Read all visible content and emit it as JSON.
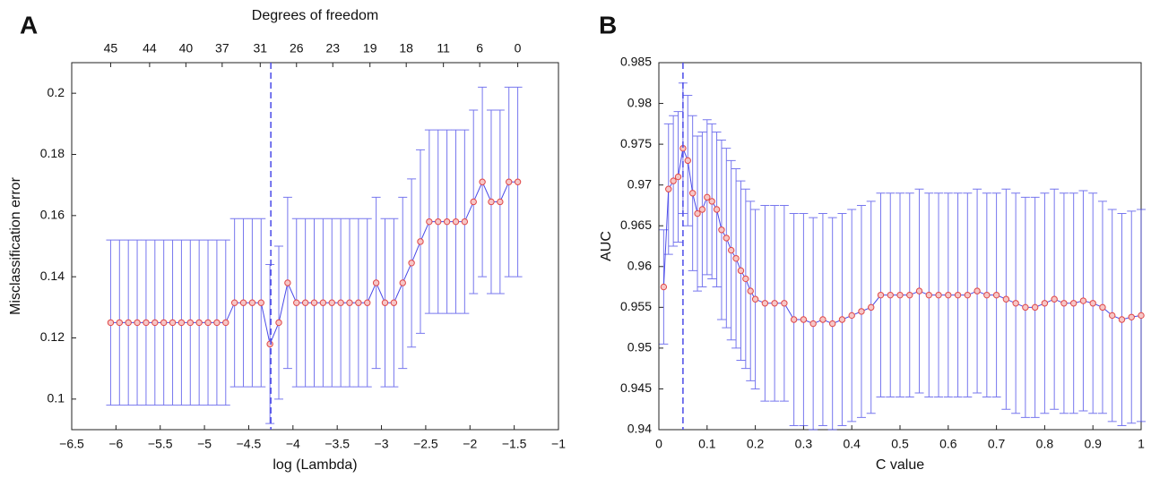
{
  "chart_data": [
    {
      "type": "errorbar",
      "panel_label": "A",
      "x2label": "Degrees of freedom",
      "xlabel": "log (Lambda)",
      "ylabel": "Misclassification error",
      "xlim": [
        -6.5,
        -1
      ],
      "ylim": [
        0.09,
        0.21
      ],
      "xticks": [
        {
          "value": -6.5,
          "label": "−6.5"
        },
        {
          "value": -6,
          "label": "−6"
        },
        {
          "value": -5.5,
          "label": "−5.5"
        },
        {
          "value": -5,
          "label": "−5"
        },
        {
          "value": -4.5,
          "label": "−4.5"
        },
        {
          "value": -4,
          "label": "−4"
        },
        {
          "value": -3.5,
          "label": "−3.5"
        },
        {
          "value": -3,
          "label": "−3"
        },
        {
          "value": -2.5,
          "label": "−2.5"
        },
        {
          "value": -2,
          "label": "−2"
        },
        {
          "value": -1.5,
          "label": "−1.5"
        },
        {
          "value": -1,
          "label": "−1"
        }
      ],
      "yticks": [
        0.1,
        0.12,
        0.14,
        0.16,
        0.18,
        0.2
      ],
      "x2ticks": [
        {
          "value": -6.06,
          "label": "45"
        },
        {
          "value": -5.62,
          "label": "44"
        },
        {
          "value": -5.21,
          "label": "40"
        },
        {
          "value": -4.8,
          "label": "37"
        },
        {
          "value": -4.37,
          "label": "31"
        },
        {
          "value": -3.96,
          "label": "26"
        },
        {
          "value": -3.55,
          "label": "23"
        },
        {
          "value": -3.13,
          "label": "19"
        },
        {
          "value": -2.72,
          "label": "18"
        },
        {
          "value": -2.3,
          "label": "11"
        },
        {
          "value": -1.89,
          "label": "6"
        },
        {
          "value": -1.46,
          "label": "0"
        }
      ],
      "vline": -4.25,
      "series": [
        {
          "color": "#4a4ae8",
          "marker_color": "#e04848",
          "x": [
            -6.06,
            -5.96,
            -5.86,
            -5.76,
            -5.66,
            -5.56,
            -5.46,
            -5.36,
            -5.26,
            -5.16,
            -5.06,
            -4.96,
            -4.86,
            -4.76,
            -4.66,
            -4.56,
            -4.46,
            -4.36,
            -4.26,
            -4.16,
            -4.06,
            -3.96,
            -3.86,
            -3.76,
            -3.66,
            -3.56,
            -3.46,
            -3.36,
            -3.26,
            -3.16,
            -3.06,
            -2.96,
            -2.86,
            -2.76,
            -2.66,
            -2.56,
            -2.46,
            -2.36,
            -2.26,
            -2.16,
            -2.06,
            -1.96,
            -1.86,
            -1.76,
            -1.66,
            -1.56,
            -1.46
          ],
          "values": [
            0.125,
            0.125,
            0.125,
            0.125,
            0.125,
            0.125,
            0.125,
            0.125,
            0.125,
            0.125,
            0.125,
            0.125,
            0.125,
            0.125,
            0.1315,
            0.1315,
            0.1315,
            0.1315,
            0.118,
            0.125,
            0.138,
            0.1315,
            0.1315,
            0.1315,
            0.1315,
            0.1315,
            0.1315,
            0.1315,
            0.1315,
            0.1315,
            0.138,
            0.1315,
            0.1315,
            0.138,
            0.1445,
            0.1515,
            0.158,
            0.158,
            0.158,
            0.158,
            0.158,
            0.1645,
            0.171,
            0.1645,
            0.1645,
            0.171,
            0.171
          ],
          "error": [
            0.027,
            0.027,
            0.027,
            0.027,
            0.027,
            0.027,
            0.027,
            0.027,
            0.027,
            0.027,
            0.027,
            0.027,
            0.027,
            0.027,
            0.0275,
            0.0275,
            0.0275,
            0.0275,
            0.026,
            0.025,
            0.028,
            0.0275,
            0.0275,
            0.0275,
            0.0275,
            0.0275,
            0.0275,
            0.0275,
            0.0275,
            0.0275,
            0.028,
            0.0275,
            0.0275,
            0.028,
            0.0275,
            0.03,
            0.03,
            0.03,
            0.03,
            0.03,
            0.03,
            0.03,
            0.031,
            0.03,
            0.03,
            0.031,
            0.031
          ]
        }
      ]
    },
    {
      "type": "errorbar",
      "panel_label": "B",
      "xlabel": "C value",
      "ylabel": "AUC",
      "xlim": [
        0,
        1
      ],
      "ylim": [
        0.94,
        0.985
      ],
      "xticks": [
        0,
        0.1,
        0.2,
        0.3,
        0.4,
        0.5,
        0.6,
        0.7,
        0.8,
        0.9,
        1
      ],
      "yticks": [
        0.94,
        0.945,
        0.95,
        0.955,
        0.96,
        0.965,
        0.97,
        0.975,
        0.98,
        0.985
      ],
      "vline": 0.05,
      "series": [
        {
          "color": "#4a4ae8",
          "marker_color": "#e04848",
          "x": [
            0.01,
            0.02,
            0.03,
            0.04,
            0.05,
            0.06,
            0.07,
            0.08,
            0.09,
            0.1,
            0.11,
            0.12,
            0.13,
            0.14,
            0.15,
            0.16,
            0.17,
            0.18,
            0.19,
            0.2,
            0.22,
            0.24,
            0.26,
            0.28,
            0.3,
            0.32,
            0.34,
            0.36,
            0.38,
            0.4,
            0.42,
            0.44,
            0.46,
            0.48,
            0.5,
            0.52,
            0.54,
            0.56,
            0.58,
            0.6,
            0.62,
            0.64,
            0.66,
            0.68,
            0.7,
            0.72,
            0.74,
            0.76,
            0.78,
            0.8,
            0.82,
            0.84,
            0.86,
            0.88,
            0.9,
            0.92,
            0.94,
            0.96,
            0.98,
            1
          ],
          "values": [
            0.9575,
            0.9695,
            0.9705,
            0.971,
            0.9745,
            0.973,
            0.969,
            0.9665,
            0.967,
            0.9685,
            0.968,
            0.967,
            0.9645,
            0.9635,
            0.962,
            0.961,
            0.9595,
            0.9585,
            0.957,
            0.956,
            0.9555,
            0.9555,
            0.9555,
            0.9535,
            0.9535,
            0.953,
            0.9535,
            0.953,
            0.9535,
            0.954,
            0.9545,
            0.955,
            0.9565,
            0.9565,
            0.9565,
            0.9565,
            0.957,
            0.9565,
            0.9565,
            0.9565,
            0.9565,
            0.9565,
            0.957,
            0.9565,
            0.9565,
            0.956,
            0.9555,
            0.955,
            0.955,
            0.9555,
            0.956,
            0.9555,
            0.9555,
            0.9558,
            0.9555,
            0.955,
            0.954,
            0.9535,
            0.9538,
            0.954
          ],
          "error": [
            0.007,
            0.008,
            0.008,
            0.008,
            0.008,
            0.008,
            0.0095,
            0.0095,
            0.0095,
            0.0095,
            0.0095,
            0.0095,
            0.011,
            0.011,
            0.011,
            0.011,
            0.011,
            0.011,
            0.011,
            0.011,
            0.012,
            0.012,
            0.012,
            0.013,
            0.013,
            0.013,
            0.013,
            0.013,
            0.013,
            0.013,
            0.013,
            0.013,
            0.0125,
            0.0125,
            0.0125,
            0.0125,
            0.0125,
            0.0125,
            0.0125,
            0.0125,
            0.0125,
            0.0125,
            0.0125,
            0.0125,
            0.0125,
            0.0135,
            0.0135,
            0.0135,
            0.0135,
            0.0135,
            0.0135,
            0.0135,
            0.0135,
            0.0135,
            0.0135,
            0.013,
            0.013,
            0.013,
            0.013,
            0.013
          ]
        }
      ]
    }
  ]
}
